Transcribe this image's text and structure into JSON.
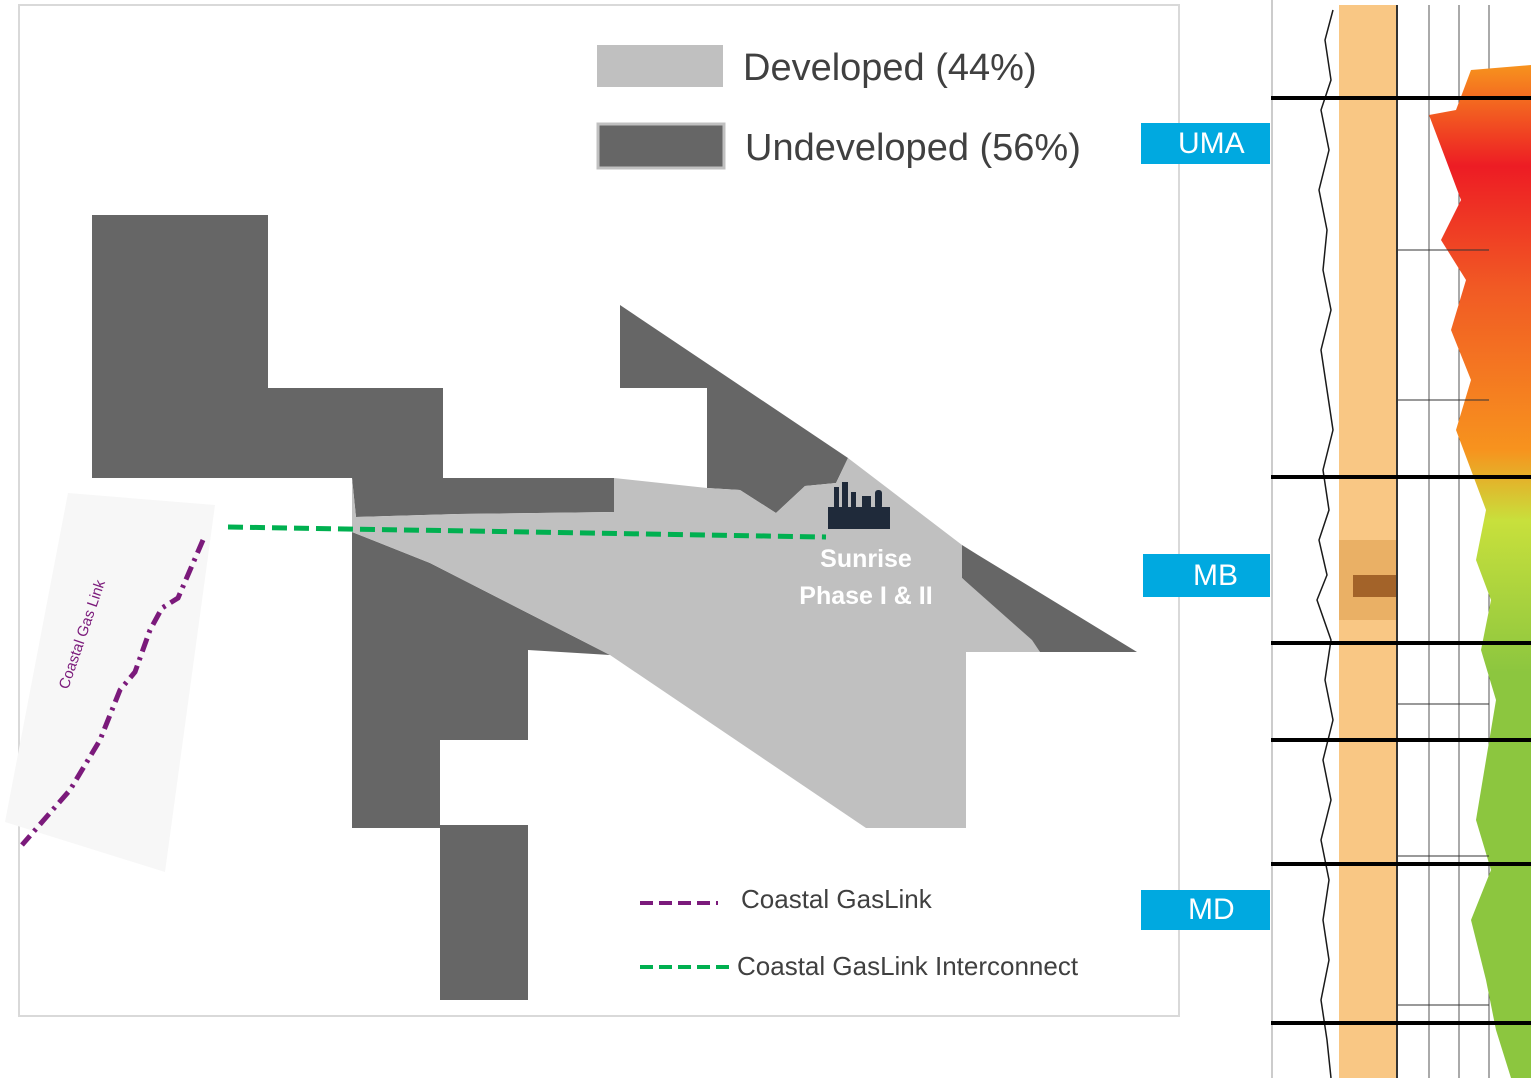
{
  "legend": {
    "developed_label": "Developed (44%)",
    "undeveloped_label": "Undeveloped (56%)",
    "developed_color": "#c0c0c0",
    "undeveloped_color": "#666666",
    "coastal_gaslink_label": "Coastal GasLink",
    "coastal_gaslink_color": "#7b1a7b",
    "interconnect_label": "Coastal GasLink Interconnect",
    "interconnect_color": "#00b050"
  },
  "map": {
    "facility_name_line1": "Sunrise",
    "facility_name_line2": "Phase I & II",
    "facility_icon": "refinery-icon",
    "pipeline_map_label": "Coastal Gas Link"
  },
  "well_log": {
    "arrow_color": "#00a9e0",
    "markers": [
      "UMA",
      "MB",
      "MD"
    ]
  }
}
